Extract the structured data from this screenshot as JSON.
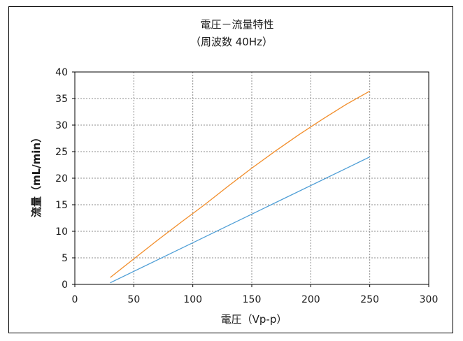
{
  "chart_data": {
    "type": "line",
    "title": "電圧－流量特性",
    "subtitle": "（周波数 40Hz）",
    "xlabel": "電圧（Vp-p）",
    "ylabel": "流量（mL/min）",
    "xlim": [
      0,
      300
    ],
    "ylim": [
      0,
      40
    ],
    "x_ticks": [
      "0",
      "50",
      "100",
      "150",
      "200",
      "250",
      "300"
    ],
    "y_ticks": [
      "0",
      "5",
      "10",
      "15",
      "20",
      "25",
      "30",
      "35",
      "40"
    ],
    "grid": true,
    "legend": "none",
    "series": [
      {
        "color": "#f28e2b",
        "x": [
          30,
          50,
          70,
          90,
          110,
          130,
          150,
          170,
          190,
          210,
          230,
          250
        ],
        "y": [
          1.3,
          4.8,
          8.3,
          11.7,
          15.0,
          18.5,
          21.9,
          25.1,
          28.2,
          31.1,
          33.9,
          36.4
        ]
      },
      {
        "color": "#4e9ed6",
        "x": [
          30,
          250
        ],
        "y": [
          0.3,
          24.0
        ]
      }
    ]
  }
}
